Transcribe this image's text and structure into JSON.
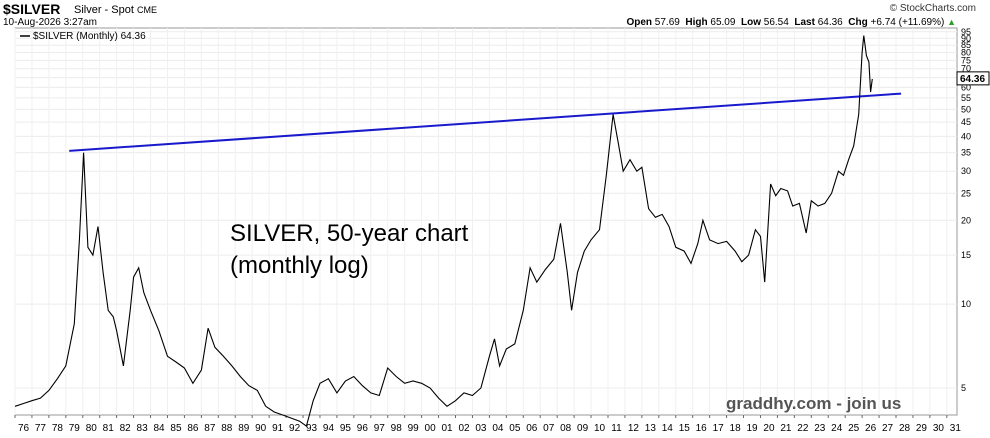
{
  "header": {
    "symbol": "$SILVER",
    "description": "Silver - Spot",
    "exchange": "CME",
    "credit": "© StockCharts.com",
    "datetime": "10-Aug-2026 3:27am",
    "open_label": "Open",
    "open": "57.69",
    "high_label": "High",
    "high": "65.09",
    "low_label": "Low",
    "low": "56.54",
    "last_label": "Last",
    "last": "64.36",
    "chg_label": "Chg",
    "chg": "+6.74 (+11.69%)",
    "chg_arrow": "▲"
  },
  "legend": {
    "label": "$SILVER (Monthly) 64.36"
  },
  "annotations": {
    "title_line1": "SILVER, 50-year chart",
    "title_line2": "(monthly log)",
    "watermark": "graddhy.com - join us",
    "last_price_tag": "64.36"
  },
  "colors": {
    "price_line": "#000000",
    "trendline": "#1a1acd",
    "grid": "#e8e8e8",
    "watermark": "#555555"
  },
  "chart_data": {
    "type": "line",
    "scale": "log",
    "x_tick_labels": [
      "76",
      "77",
      "78",
      "79",
      "80",
      "81",
      "82",
      "83",
      "84",
      "85",
      "86",
      "87",
      "88",
      "89",
      "90",
      "91",
      "92",
      "93",
      "94",
      "95",
      "96",
      "97",
      "98",
      "99",
      "00",
      "01",
      "02",
      "03",
      "04",
      "05",
      "06",
      "07",
      "08",
      "09",
      "10",
      "11",
      "12",
      "13",
      "14",
      "15",
      "16",
      "17",
      "18",
      "19",
      "20",
      "21",
      "22",
      "23",
      "24",
      "25",
      "26",
      "27",
      "28",
      "29",
      "30",
      "31"
    ],
    "y_tick_labels": [
      "95",
      "90",
      "85",
      "80",
      "75",
      "70",
      "65",
      "60",
      "55",
      "50",
      "45",
      "40",
      "35",
      "30",
      "25",
      "20",
      "15",
      "10",
      "5"
    ],
    "y_ticks": [
      95,
      90,
      85,
      80,
      75,
      70,
      65,
      60,
      55,
      50,
      45,
      40,
      35,
      30,
      25,
      20,
      15,
      10,
      5
    ],
    "ylim": [
      4.0,
      98
    ],
    "xlim": [
      1976.0,
      2031.6
    ],
    "grid": true,
    "series": [
      {
        "name": "$SILVER",
        "points": [
          [
            1976.0,
            4.3
          ],
          [
            1976.5,
            4.4
          ],
          [
            1977.0,
            4.5
          ],
          [
            1977.5,
            4.6
          ],
          [
            1978.0,
            4.9
          ],
          [
            1978.5,
            5.4
          ],
          [
            1979.0,
            6.0
          ],
          [
            1979.5,
            8.5
          ],
          [
            1979.8,
            17
          ],
          [
            1980.05,
            35.0
          ],
          [
            1980.3,
            16
          ],
          [
            1980.6,
            15
          ],
          [
            1980.9,
            19
          ],
          [
            1981.2,
            13
          ],
          [
            1981.5,
            9.5
          ],
          [
            1981.8,
            9.0
          ],
          [
            1982.0,
            8.0
          ],
          [
            1982.4,
            6.0
          ],
          [
            1982.8,
            9.5
          ],
          [
            1983.0,
            12.5
          ],
          [
            1983.3,
            13.5
          ],
          [
            1983.6,
            11.0
          ],
          [
            1984.0,
            9.5
          ],
          [
            1984.5,
            8.0
          ],
          [
            1985.0,
            6.5
          ],
          [
            1985.5,
            6.2
          ],
          [
            1986.0,
            5.9
          ],
          [
            1986.5,
            5.2
          ],
          [
            1987.0,
            5.8
          ],
          [
            1987.4,
            8.2
          ],
          [
            1987.8,
            7.0
          ],
          [
            1988.3,
            6.5
          ],
          [
            1988.8,
            6.0
          ],
          [
            1989.3,
            5.5
          ],
          [
            1989.8,
            5.1
          ],
          [
            1990.3,
            4.9
          ],
          [
            1990.8,
            4.3
          ],
          [
            1991.3,
            4.1
          ],
          [
            1991.8,
            4.0
          ],
          [
            1992.3,
            3.9
          ],
          [
            1992.8,
            3.8
          ],
          [
            1993.2,
            3.65
          ],
          [
            1993.6,
            4.5
          ],
          [
            1994.0,
            5.2
          ],
          [
            1994.5,
            5.4
          ],
          [
            1995.0,
            4.8
          ],
          [
            1995.5,
            5.3
          ],
          [
            1996.0,
            5.5
          ],
          [
            1996.5,
            5.1
          ],
          [
            1997.0,
            4.8
          ],
          [
            1997.5,
            4.7
          ],
          [
            1998.0,
            5.9
          ],
          [
            1998.5,
            5.5
          ],
          [
            1999.0,
            5.2
          ],
          [
            1999.5,
            5.3
          ],
          [
            2000.0,
            5.2
          ],
          [
            2000.5,
            5.0
          ],
          [
            2001.0,
            4.6
          ],
          [
            2001.5,
            4.3
          ],
          [
            2002.0,
            4.5
          ],
          [
            2002.5,
            4.8
          ],
          [
            2003.0,
            4.7
          ],
          [
            2003.5,
            5.0
          ],
          [
            2004.0,
            6.5
          ],
          [
            2004.3,
            7.5
          ],
          [
            2004.6,
            6.0
          ],
          [
            2005.0,
            6.9
          ],
          [
            2005.5,
            7.2
          ],
          [
            2006.0,
            9.5
          ],
          [
            2006.4,
            13.5
          ],
          [
            2006.8,
            12.0
          ],
          [
            2007.3,
            13.3
          ],
          [
            2007.8,
            14.5
          ],
          [
            2008.2,
            19.5
          ],
          [
            2008.6,
            13.0
          ],
          [
            2008.85,
            9.5
          ],
          [
            2009.2,
            13.0
          ],
          [
            2009.6,
            15.5
          ],
          [
            2010.0,
            17.0
          ],
          [
            2010.5,
            18.5
          ],
          [
            2010.9,
            29.0
          ],
          [
            2011.3,
            48.0
          ],
          [
            2011.6,
            38.0
          ],
          [
            2011.9,
            30.0
          ],
          [
            2012.3,
            33.0
          ],
          [
            2012.7,
            30.0
          ],
          [
            2013.0,
            31.0
          ],
          [
            2013.4,
            22.0
          ],
          [
            2013.8,
            20.5
          ],
          [
            2014.2,
            21.0
          ],
          [
            2014.6,
            19.0
          ],
          [
            2015.0,
            16.0
          ],
          [
            2015.5,
            15.5
          ],
          [
            2015.9,
            14.0
          ],
          [
            2016.3,
            16.5
          ],
          [
            2016.6,
            20.0
          ],
          [
            2017.0,
            17.0
          ],
          [
            2017.5,
            16.5
          ],
          [
            2018.0,
            16.8
          ],
          [
            2018.5,
            15.5
          ],
          [
            2018.9,
            14.2
          ],
          [
            2019.3,
            15.0
          ],
          [
            2019.7,
            18.5
          ],
          [
            2020.0,
            17.5
          ],
          [
            2020.25,
            12.0
          ],
          [
            2020.6,
            27.0
          ],
          [
            2020.9,
            24.5
          ],
          [
            2021.2,
            26.0
          ],
          [
            2021.6,
            25.5
          ],
          [
            2021.9,
            22.5
          ],
          [
            2022.3,
            23.0
          ],
          [
            2022.7,
            18.0
          ],
          [
            2023.0,
            23.5
          ],
          [
            2023.4,
            22.5
          ],
          [
            2023.8,
            23.0
          ],
          [
            2024.2,
            25.0
          ],
          [
            2024.6,
            30.0
          ],
          [
            2024.9,
            29.0
          ],
          [
            2025.2,
            33.0
          ],
          [
            2025.5,
            37.0
          ],
          [
            2025.8,
            48.0
          ],
          [
            2026.0,
            80.0
          ],
          [
            2026.1,
            92.0
          ],
          [
            2026.25,
            78.0
          ],
          [
            2026.4,
            74.0
          ],
          [
            2026.5,
            57.69
          ],
          [
            2026.6,
            64.36
          ]
        ]
      }
    ],
    "trendline": {
      "from": [
        1979.2,
        35.5
      ],
      "to": [
        2028.3,
        57.0
      ]
    }
  }
}
